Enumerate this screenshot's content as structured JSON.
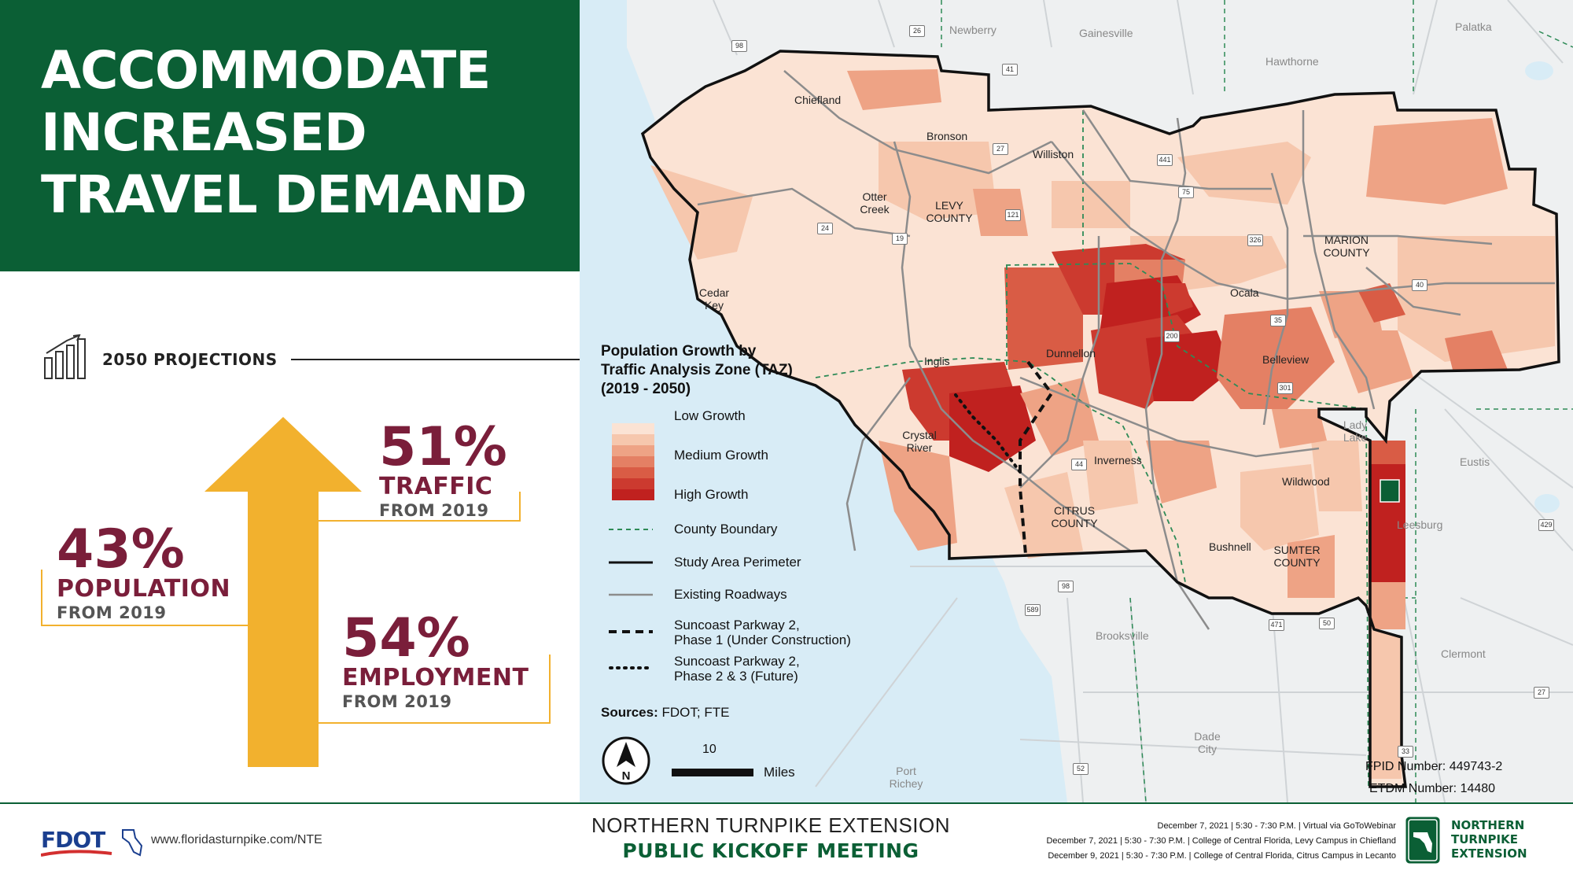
{
  "header": {
    "headline_lines": [
      "ACCOMMODATE",
      "INCREASED",
      "TRAVEL DEMAND"
    ],
    "accent_color": "#0b5f35"
  },
  "projections": {
    "title": "2050 PROJECTIONS",
    "icon": "growth-bar-chart-icon",
    "stats": {
      "traffic": {
        "pct": "51%",
        "label": "TRAFFIC",
        "from": "FROM 2019",
        "value": 51
      },
      "population": {
        "pct": "43%",
        "label": "POPULATION",
        "from": "FROM 2019",
        "value": 43
      },
      "employment": {
        "pct": "54%",
        "label": "EMPLOYMENT",
        "from": "FROM 2019",
        "value": 54
      }
    },
    "stat_color": "#7a1e3a",
    "arrow_color": "#f2b12e"
  },
  "map": {
    "legend": {
      "title_lines": [
        "Population Growth by",
        "Traffic Analysis Zone (TAZ)",
        "(2019 - 2050)"
      ],
      "growth_classes": [
        "Low Growth",
        "Medium Growth",
        "High Growth"
      ],
      "growth_colors": [
        "#fbe3d4",
        "#f6c7ad",
        "#eea385",
        "#e48064",
        "#d95c45",
        "#cc3a2f",
        "#c0211f"
      ],
      "county_boundary": "County Boundary",
      "study_area": "Study Area Perimeter",
      "roadways": "Existing Roadways",
      "phase1_lines": [
        "Suncoast Parkway 2,",
        "Phase 1 (Under Construction)"
      ],
      "phase23_lines": [
        "Suncoast Parkway 2,",
        "Phase 2 & 3 (Future)"
      ]
    },
    "sources_label": "Sources:",
    "sources_value": "FDOT; FTE",
    "scale_value": "10",
    "scale_units": "Miles",
    "north_label": "N",
    "places": {
      "newberry": "Newberry",
      "gainesville": "Gainesville",
      "palatka": "Palatka",
      "hawthorne": "Hawthorne",
      "chiefland": "Chiefland",
      "bronson": "Bronson",
      "williston": "Williston",
      "otter_creek": "Otter Creek",
      "cedar_key": "Cedar Key",
      "inglis": "Inglis",
      "dunnellon": "Dunnellon",
      "ocala": "Ocala",
      "belleview": "Belleview",
      "crystal_river": "Crystal River",
      "inverness": "Inverness",
      "lady_lake": "Lady Lake",
      "eustis": "Eustis",
      "wildwood": "Wildwood",
      "leesburg": "Leesburg",
      "bushnell": "Bushnell",
      "brooksville": "Brooksville",
      "clermont": "Clermont",
      "dade_city": "Dade City",
      "port_richey": "Port Richey"
    },
    "counties": {
      "levy": "LEVY COUNTY",
      "marion": "MARION COUNTY",
      "citrus": "CITRUS COUNTY",
      "sumter": "SUMTER COUNTY"
    },
    "route_shields": [
      "26",
      "98",
      "41",
      "441",
      "27",
      "121",
      "24",
      "19",
      "75",
      "40",
      "326",
      "35",
      "200",
      "301",
      "44",
      "471",
      "50",
      "589",
      "429",
      "33",
      "27",
      "52",
      "98"
    ],
    "fpid": "FPID Number: 449743-2",
    "etdm": "ETDM Number: 14480",
    "water_color": "#d8ecf6",
    "land_color": "#eef0f1"
  },
  "footer": {
    "fdot_logo_text": "FDOT",
    "url": "www.floridasturnpike.com/NTE",
    "title": "NORTHERN TURNPIKE EXTENSION",
    "subtitle": "PUBLIC KICKOFF MEETING",
    "meetings": [
      "December 7, 2021 | 5:30 - 7:30 P.M. | Virtual via GoToWebinar",
      "December 7, 2021 | 5:30 - 7:30 P.M. | College of Central Florida, Levy Campus in Chiefland",
      "December 9, 2021 | 5:30 - 7:30 P.M. | College of Central Florida, Citrus Campus in Lecanto"
    ],
    "nte_logo_lines": [
      "NORTHERN",
      "TURNPIKE",
      "EXTENSION"
    ]
  }
}
